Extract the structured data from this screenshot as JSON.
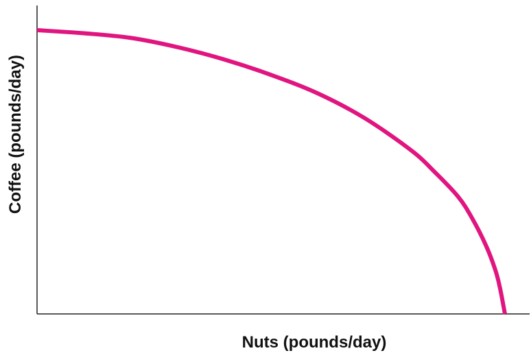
{
  "chart_data": {
    "type": "line",
    "title": "",
    "xlabel": "Nuts (pounds/day)",
    "ylabel": "Coffee (pounds/day)",
    "xlim": [
      0,
      1.0
    ],
    "ylim": [
      0,
      1.0
    ],
    "grid": false,
    "series": [
      {
        "color": "#e0157f",
        "x": [
          0,
          0.1,
          0.2,
          0.3,
          0.4,
          0.5,
          0.6,
          0.7,
          0.8,
          0.85,
          0.9,
          0.93,
          0.96,
          0.98,
          0.99,
          1.0
        ],
        "y": [
          0.92,
          0.91,
          0.895,
          0.865,
          0.825,
          0.775,
          0.715,
          0.635,
          0.53,
          0.46,
          0.38,
          0.31,
          0.22,
          0.14,
          0.08,
          0.0
        ]
      }
    ]
  }
}
